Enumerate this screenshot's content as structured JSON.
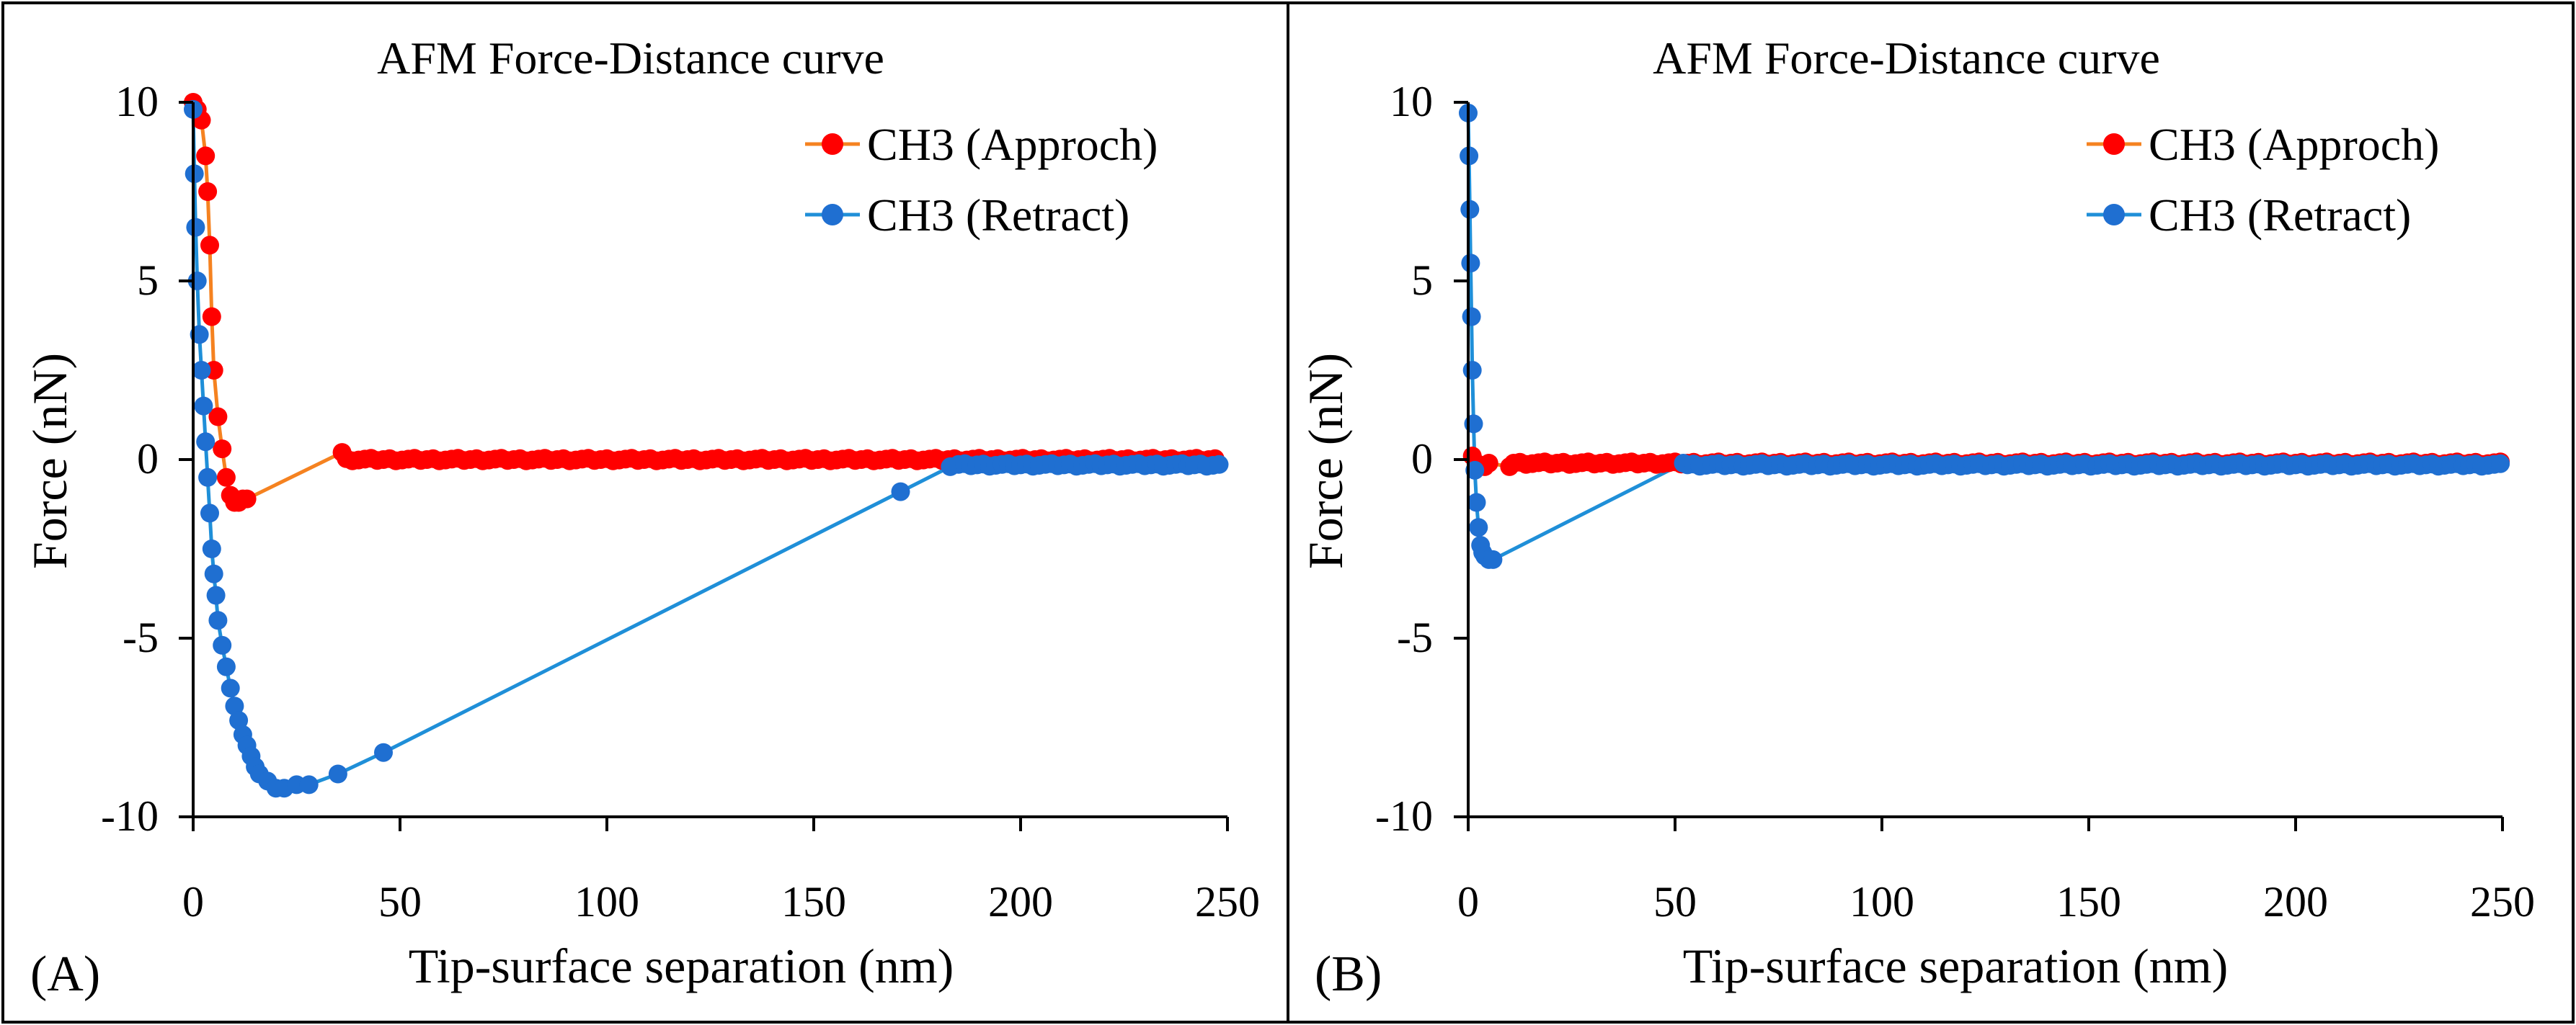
{
  "figure": {
    "colors": {
      "approach": "#FF0000",
      "retract": "#1F6FD1",
      "approach_line": "#F58220",
      "retract_line": "#1F8FD8",
      "axis": "#000000"
    }
  },
  "chart_data": [
    {
      "type": "scatter",
      "panel_label": "(A)",
      "title": "AFM Force-Distance curve",
      "xlabel": "Tip-surface separation (nm)",
      "ylabel": "Force (nN)",
      "xlim": [
        0,
        250
      ],
      "ylim": [
        -10,
        10
      ],
      "xticks": [
        "0",
        "50",
        "100",
        "150",
        "200",
        "250"
      ],
      "yticks": [
        "10",
        "5",
        "0",
        "-5",
        "-10"
      ],
      "legend": [
        "CH3 (Approch)",
        "CH3 (Retract)"
      ],
      "series": [
        {
          "name": "CH3 (Approch)",
          "color": "#FF0000",
          "line_color": "#F58220",
          "dense": [
            [
              0,
              10
            ],
            [
              1,
              9.8
            ],
            [
              2,
              9.5
            ],
            [
              3,
              8.5
            ],
            [
              3.5,
              7.5
            ],
            [
              4,
              6
            ],
            [
              4.5,
              4
            ],
            [
              5,
              2.5
            ],
            [
              6,
              1.2
            ],
            [
              7,
              0.3
            ],
            [
              8,
              -0.5
            ],
            [
              9,
              -1
            ],
            [
              10,
              -1.2
            ],
            [
              11,
              -1.2
            ],
            [
              12,
              -1.1
            ],
            [
              13,
              -1.1
            ]
          ],
          "sparse": [
            [
              36,
              0.2
            ]
          ],
          "flat": {
            "from": 37,
            "to": 248,
            "y": 0
          }
        },
        {
          "name": "CH3 (Retract)",
          "color": "#1F6FD1",
          "line_color": "#1F8FD8",
          "dense": [
            [
              0,
              9.8
            ],
            [
              0.3,
              8
            ],
            [
              0.6,
              6.5
            ],
            [
              1,
              5
            ],
            [
              1.5,
              3.5
            ],
            [
              2,
              2.5
            ],
            [
              2.5,
              1.5
            ],
            [
              3,
              0.5
            ],
            [
              3.5,
              -0.5
            ],
            [
              4,
              -1.5
            ],
            [
              4.5,
              -2.5
            ],
            [
              5,
              -3.2
            ],
            [
              5.5,
              -3.8
            ],
            [
              6,
              -4.5
            ],
            [
              7,
              -5.2
            ],
            [
              8,
              -5.8
            ],
            [
              9,
              -6.4
            ],
            [
              10,
              -6.9
            ],
            [
              11,
              -7.3
            ],
            [
              12,
              -7.7
            ],
            [
              13,
              -8
            ],
            [
              14,
              -8.3
            ],
            [
              15,
              -8.6
            ],
            [
              16,
              -8.8
            ],
            [
              18,
              -9
            ],
            [
              20,
              -9.2
            ],
            [
              22,
              -9.2
            ]
          ],
          "sparse": [
            [
              25,
              -9.1
            ],
            [
              28,
              -9.1
            ],
            [
              35,
              -8.8
            ],
            [
              46,
              -8.2
            ],
            [
              171,
              -0.9
            ],
            [
              183,
              -0.2
            ]
          ],
          "flat": {
            "from": 185,
            "to": 248,
            "y": -0.15
          }
        }
      ]
    },
    {
      "type": "scatter",
      "panel_label": "(B)",
      "title": "AFM Force-Distance curve",
      "xlabel": "Tip-surface separation (nm)",
      "ylabel": "Force (nN)",
      "xlim": [
        0,
        250
      ],
      "ylim": [
        -10,
        10
      ],
      "xticks": [
        "0",
        "50",
        "100",
        "150",
        "200",
        "250"
      ],
      "yticks": [
        "10",
        "5",
        "0",
        "-5",
        "-10"
      ],
      "legend": [
        "CH3 (Approch)",
        "CH3 (Retract)"
      ],
      "series": [
        {
          "name": "CH3 (Approch)",
          "color": "#FF0000",
          "line_color": "#F58220",
          "dense": [
            [
              1,
              0.1
            ],
            [
              2,
              -0.1
            ],
            [
              3,
              -0.2
            ],
            [
              4,
              -0.2
            ],
            [
              5,
              -0.1
            ]
          ],
          "sparse": [
            [
              10,
              -0.2
            ]
          ],
          "flat": {
            "from": 11,
            "to": 250,
            "y": -0.1
          }
        },
        {
          "name": "CH3 (Retract)",
          "color": "#1F6FD1",
          "line_color": "#1F8FD8",
          "dense": [
            [
              0,
              9.7
            ],
            [
              0.2,
              8.5
            ],
            [
              0.4,
              7
            ],
            [
              0.6,
              5.5
            ],
            [
              0.8,
              4
            ],
            [
              1,
              2.5
            ],
            [
              1.3,
              1
            ],
            [
              1.6,
              -0.3
            ],
            [
              2,
              -1.2
            ],
            [
              2.5,
              -1.9
            ],
            [
              3,
              -2.4
            ],
            [
              3.5,
              -2.6
            ],
            [
              4,
              -2.7
            ],
            [
              5,
              -2.8
            ],
            [
              6,
              -2.8
            ]
          ],
          "sparse": [
            [
              52,
              -0.1
            ]
          ],
          "flat": {
            "from": 53,
            "to": 250,
            "y": -0.15
          }
        }
      ]
    }
  ]
}
